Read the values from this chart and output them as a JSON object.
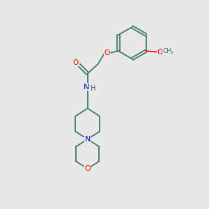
{
  "background_color": "#e8e8e8",
  "bond_color": "#3d7a6a",
  "atom_colors": {
    "O": "#ff0000",
    "N": "#0000cc",
    "C": "#000000",
    "H": "#555555"
  },
  "figsize": [
    3.0,
    3.0
  ],
  "dpi": 100
}
